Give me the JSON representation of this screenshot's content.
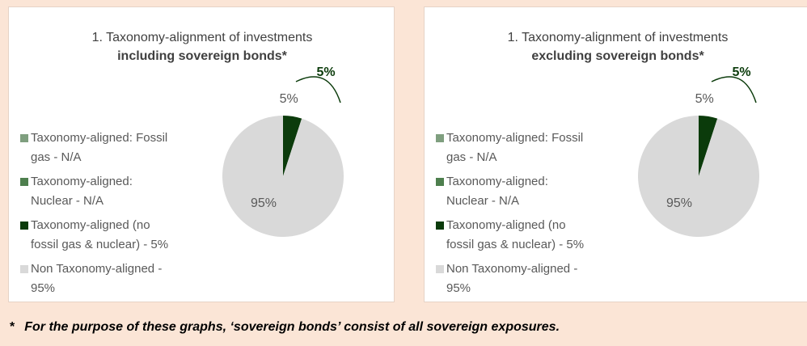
{
  "chart_data": [
    {
      "type": "pie",
      "title": "1. Taxonomy-alignment of investments",
      "subtitle": "including sovereign bonds*",
      "categories": [
        "Taxonomy-aligned: Fossil gas - N/A",
        "Taxonomy-aligned: Nuclear - N/A",
        "Taxonomy-aligned (no fossil gas & nuclear) - 5%",
        "Non Taxonomy-aligned - 95%"
      ],
      "values": [
        null,
        null,
        5,
        95
      ],
      "value_labels": [
        null,
        null,
        "5%",
        "95%"
      ],
      "colors": [
        "#7f9f7f",
        "#4e7f4e",
        "#0b3b0b",
        "#d9d9d9"
      ],
      "annotation": "5%"
    },
    {
      "type": "pie",
      "title": "1. Taxonomy-alignment of investments",
      "subtitle": "excluding sovereign bonds*",
      "categories": [
        "Taxonomy-aligned: Fossil gas - N/A",
        "Taxonomy-aligned: Nuclear - N/A",
        "Taxonomy-aligned (no fossil gas & nuclear) - 5%",
        "Non Taxonomy-aligned - 95%"
      ],
      "values": [
        null,
        null,
        5,
        95
      ],
      "value_labels": [
        null,
        null,
        "5%",
        "95%"
      ],
      "colors": [
        "#7f9f7f",
        "#4e7f4e",
        "#0b3b0b",
        "#d9d9d9"
      ],
      "annotation": "5%"
    }
  ],
  "footnote": {
    "marker": "*",
    "text": "For the purpose of these graphs, ‘sovereign bonds’ consist of all sovereign exposures."
  }
}
